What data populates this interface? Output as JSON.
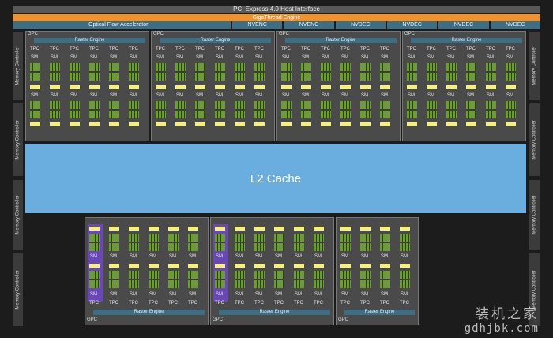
{
  "header": {
    "pcie": "PCI Express 4.0 Host Interface",
    "gigathread": "GigaThread Engine",
    "optical_flow": "Optical Flow Accelerator",
    "engines": [
      "NVENC",
      "NVENC",
      "NVDEC",
      "NVDEC",
      "NVDEC",
      "NVDEC"
    ]
  },
  "memory_controller_label": "Memory Controller",
  "l2_cache": "L2 Cache",
  "gpc_label": "GPC",
  "raster_label": "Raster Engine",
  "tpc_label": "TPC",
  "sm_label": "SM",
  "watermark": {
    "line1": "装机之家",
    "line2": "gdhjbk.com"
  },
  "colors": {
    "raster": "#3d6e83",
    "gigathread": "#f0922b",
    "l2": "#6aaedf",
    "sm_core": "#6aa02a",
    "cache_bar": "#f5f07a",
    "disabled_sm": "#6a47b6"
  }
}
